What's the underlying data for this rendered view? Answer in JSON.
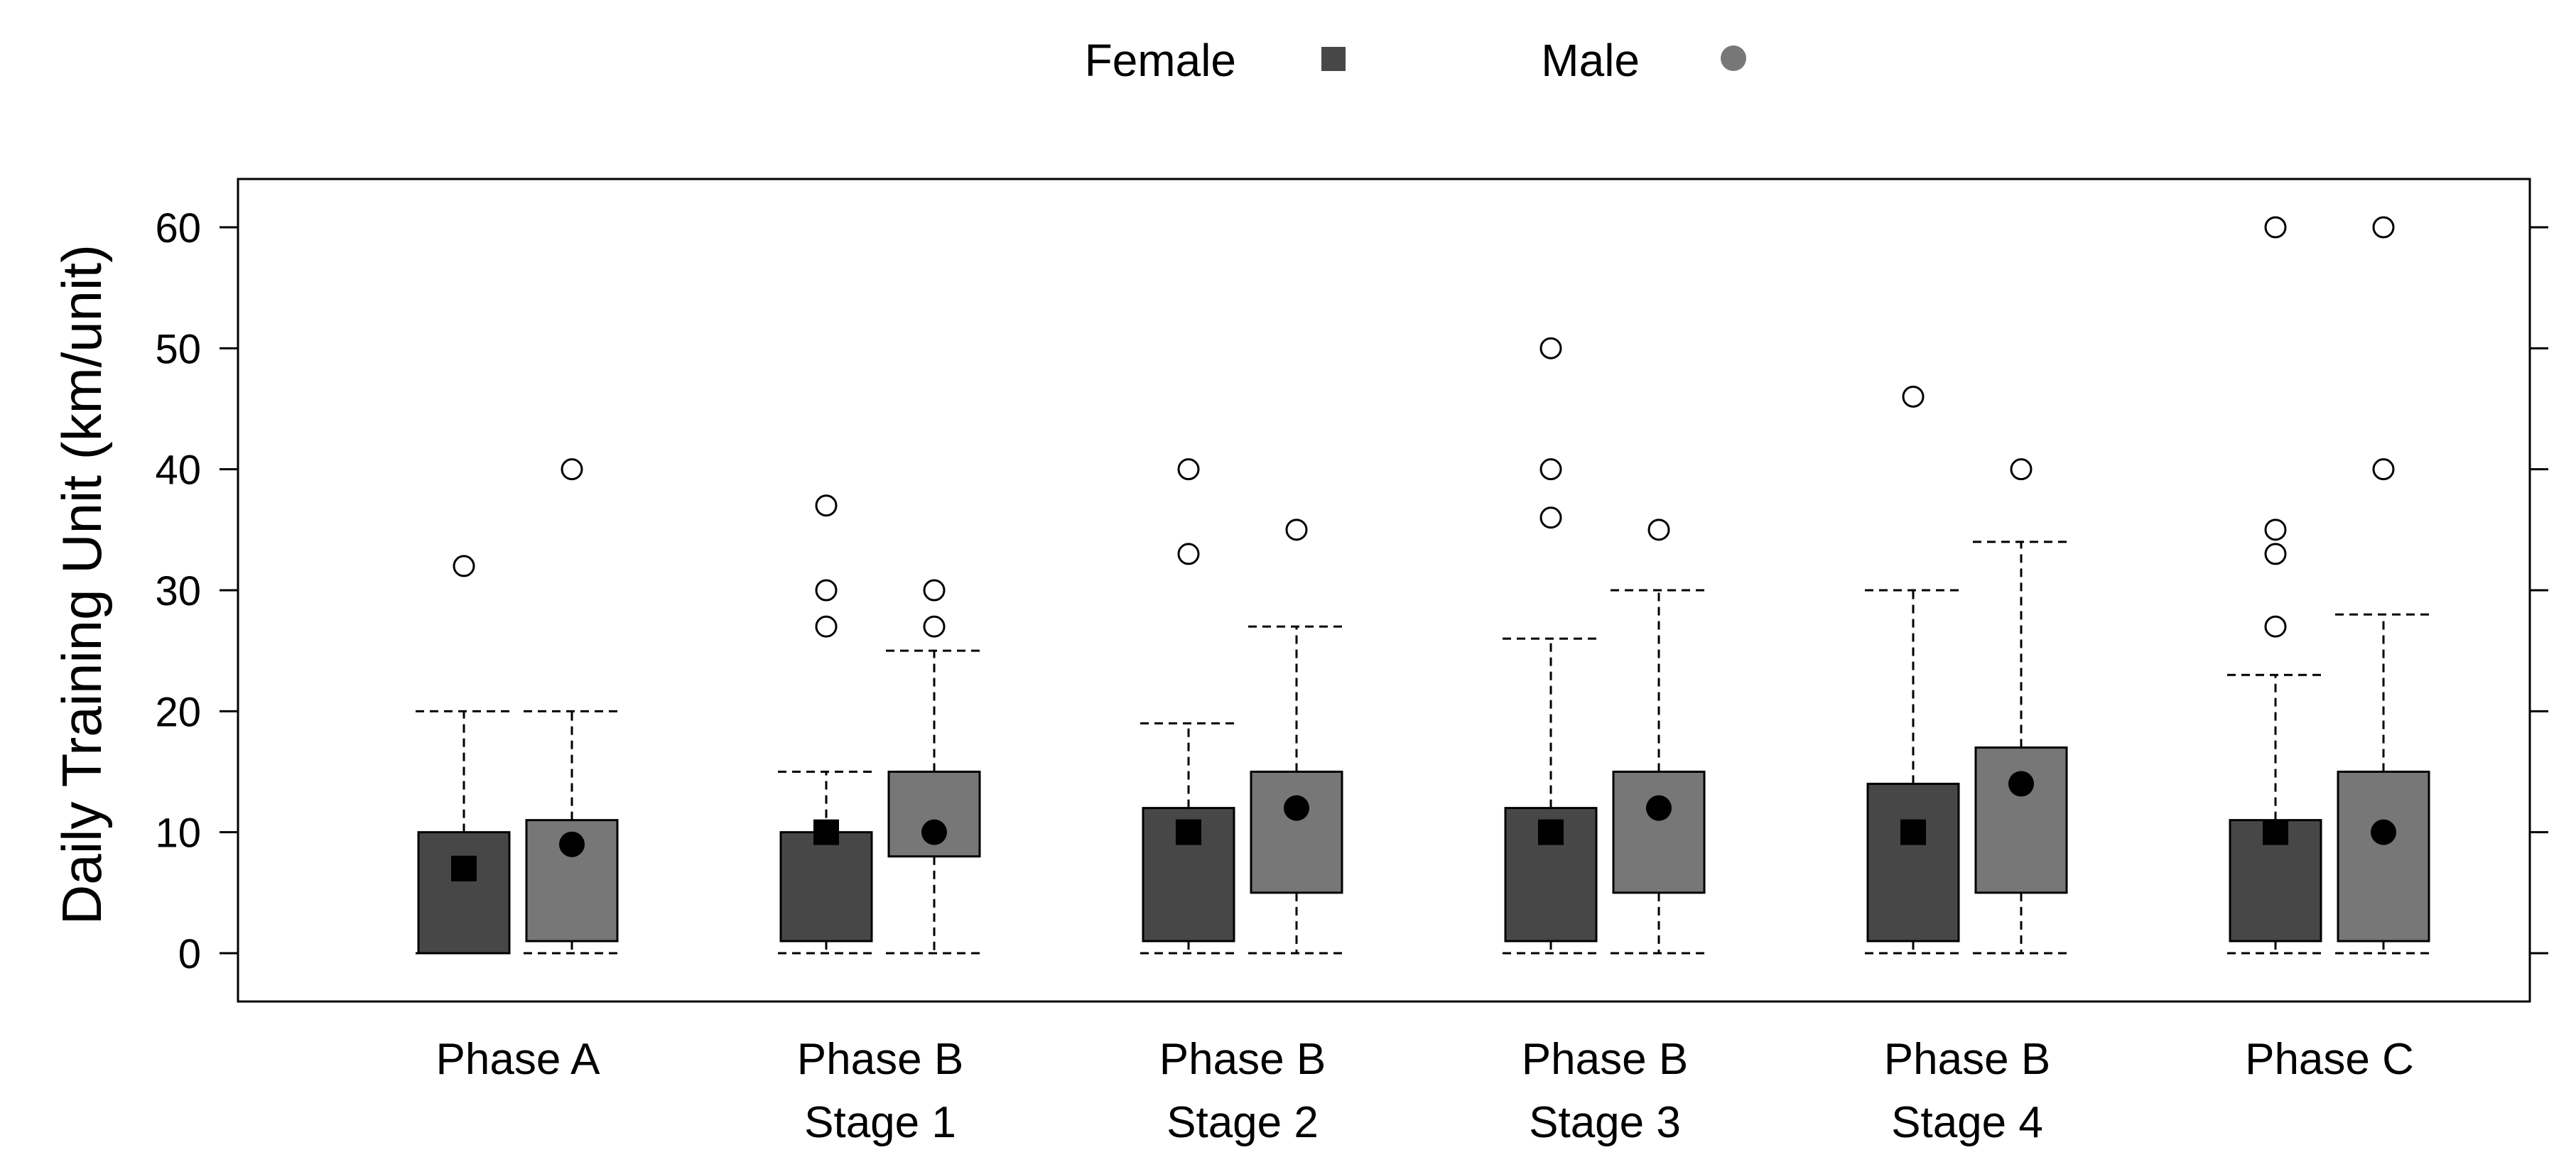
{
  "chart_data": {
    "type": "boxplot",
    "title": "",
    "xlabel": "",
    "ylabel": "Daily Training Unit (km/unit)",
    "ylim": [
      -4,
      64
    ],
    "yticks": [
      0,
      10,
      20,
      30,
      40,
      50,
      60
    ],
    "grid": false,
    "legend_position": "top-center",
    "categories": [
      [
        "Phase A"
      ],
      [
        "Phase B",
        "Stage 1"
      ],
      [
        "Phase B",
        "Stage 2"
      ],
      [
        "Phase B",
        "Stage 3"
      ],
      [
        "Phase B",
        "Stage 4"
      ],
      [
        "Phase C"
      ]
    ],
    "series": [
      {
        "name": "Female",
        "marker": "square",
        "color": "#474747",
        "boxes": [
          {
            "whisker_low": 0,
            "q1": 0,
            "q3": 10,
            "whisker_high": 20,
            "mean": 7,
            "outliers": [
              32
            ]
          },
          {
            "whisker_low": 0,
            "q1": 1,
            "q3": 10,
            "whisker_high": 15,
            "mean": 10,
            "outliers": [
              27,
              30,
              37
            ]
          },
          {
            "whisker_low": 0,
            "q1": 1,
            "q3": 12,
            "whisker_high": 19,
            "mean": 10,
            "outliers": [
              33,
              40
            ]
          },
          {
            "whisker_low": 0,
            "q1": 1,
            "q3": 12,
            "whisker_high": 26,
            "mean": 10,
            "outliers": [
              36,
              40,
              50
            ]
          },
          {
            "whisker_low": 0,
            "q1": 1,
            "q3": 14,
            "whisker_high": 30,
            "mean": 10,
            "outliers": [
              46
            ]
          },
          {
            "whisker_low": 0,
            "q1": 1,
            "q3": 11,
            "whisker_high": 23,
            "mean": 10,
            "outliers": [
              27,
              33,
              35,
              60
            ]
          }
        ]
      },
      {
        "name": "Male",
        "marker": "circle",
        "color": "#777777",
        "boxes": [
          {
            "whisker_low": 0,
            "q1": 1,
            "q3": 11,
            "whisker_high": 20,
            "mean": 9,
            "outliers": [
              40
            ]
          },
          {
            "whisker_low": 0,
            "q1": 8,
            "q3": 15,
            "whisker_high": 25,
            "mean": 10,
            "outliers": [
              27,
              30
            ]
          },
          {
            "whisker_low": 0,
            "q1": 5,
            "q3": 15,
            "whisker_high": 27,
            "mean": 12,
            "outliers": [
              35
            ]
          },
          {
            "whisker_low": 0,
            "q1": 5,
            "q3": 15,
            "whisker_high": 30,
            "mean": 12,
            "outliers": [
              35
            ]
          },
          {
            "whisker_low": 0,
            "q1": 5,
            "q3": 17,
            "whisker_high": 34,
            "mean": 14,
            "outliers": [
              40
            ]
          },
          {
            "whisker_low": 0,
            "q1": 1,
            "q3": 15,
            "whisker_high": 28,
            "mean": 10,
            "outliers": [
              40,
              60
            ]
          }
        ]
      }
    ]
  }
}
